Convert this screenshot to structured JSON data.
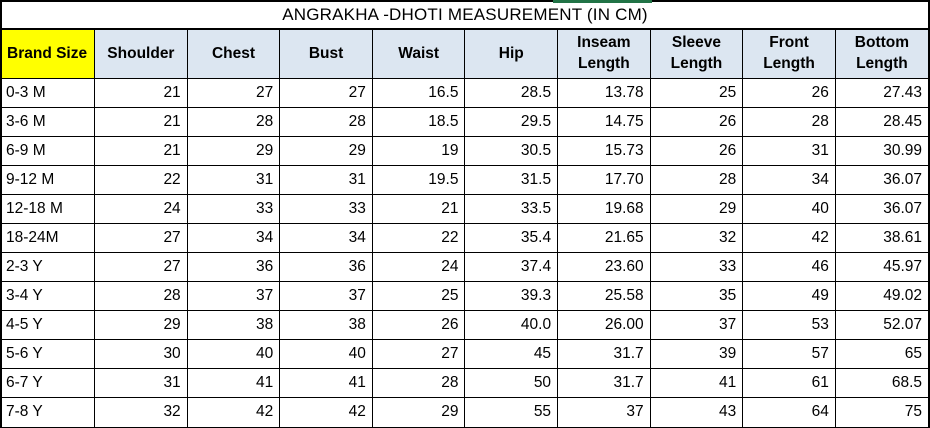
{
  "title": "ANGRAKHA -DHOTI MEASUREMENT (IN CM)",
  "colors": {
    "brand_header_bg": "#FFFF00",
    "header_bg": "#DCE6F1",
    "border": "#000000",
    "accent_green": "#217346",
    "text": "#000000",
    "background": "#FFFFFF"
  },
  "chart_data": {
    "type": "table",
    "title": "ANGRAKHA -DHOTI MEASUREMENT (IN CM)",
    "columns": [
      "Brand Size",
      "Shoulder",
      "Chest",
      "Bust",
      "Waist",
      "Hip",
      "Inseam\nLength",
      "Sleeve\nLength",
      "Front\nLength",
      "Bottom\nLength"
    ],
    "rows": [
      [
        "0-3 M",
        "21",
        "27",
        "27",
        "16.5",
        "28.5",
        "13.78",
        "25",
        "26",
        "27.43"
      ],
      [
        "3-6 M",
        "21",
        "28",
        "28",
        "18.5",
        "29.5",
        "14.75",
        "26",
        "28",
        "28.45"
      ],
      [
        "6-9 M",
        "21",
        "29",
        "29",
        "19",
        "30.5",
        "15.73",
        "26",
        "31",
        "30.99"
      ],
      [
        "9-12 M",
        "22",
        "31",
        "31",
        "19.5",
        "31.5",
        "17.70",
        "28",
        "34",
        "36.07"
      ],
      [
        "12-18 M",
        "24",
        "33",
        "33",
        "21",
        "33.5",
        "19.68",
        "29",
        "40",
        "36.07"
      ],
      [
        "18-24M",
        "27",
        "34",
        "34",
        "22",
        "35.4",
        "21.65",
        "32",
        "42",
        "38.61"
      ],
      [
        "2-3 Y",
        "27",
        "36",
        "36",
        "24",
        "37.4",
        "23.60",
        "33",
        "46",
        "45.97"
      ],
      [
        "3-4 Y",
        "28",
        "37",
        "37",
        "25",
        "39.3",
        "25.58",
        "35",
        "49",
        "49.02"
      ],
      [
        "4-5 Y",
        "29",
        "38",
        "38",
        "26",
        "40.0",
        "26.00",
        "37",
        "53",
        "52.07"
      ],
      [
        "5-6 Y",
        "30",
        "40",
        "40",
        "27",
        "45",
        "31.7",
        "39",
        "57",
        "65"
      ],
      [
        "6-7 Y",
        "31",
        "41",
        "41",
        "28",
        "50",
        "31.7",
        "41",
        "61",
        "68.5"
      ],
      [
        "7-8 Y",
        "32",
        "42",
        "42",
        "29",
        "55",
        "37",
        "43",
        "64",
        "75"
      ]
    ]
  }
}
